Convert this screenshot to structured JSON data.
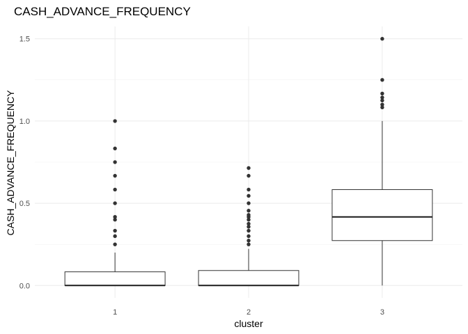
{
  "chart_data": {
    "type": "boxplot",
    "title": "CASH_ADVANCE_FREQUENCY",
    "xlabel": "cluster",
    "ylabel": "CASH_ADVANCE_FREQUENCY",
    "categories": [
      "1",
      "2",
      "3"
    ],
    "ylim": [
      -0.075,
      1.575
    ],
    "y_ticks": [
      0.0,
      0.5,
      1.0,
      1.5
    ],
    "y_tick_labels": [
      "0.0",
      "0.5",
      "1.0",
      "1.5"
    ],
    "grid": true,
    "boxes": [
      {
        "category": "1",
        "whisker_low": 0.0,
        "q1": 0.0,
        "median": 0.0,
        "q3": 0.083,
        "whisker_high": 0.2,
        "outliers": [
          0.25,
          0.3,
          0.333,
          0.4,
          0.417,
          0.5,
          0.583,
          0.667,
          0.75,
          0.833,
          1.0
        ]
      },
      {
        "category": "2",
        "whisker_low": 0.0,
        "q1": 0.0,
        "median": 0.0,
        "q3": 0.091,
        "whisker_high": 0.222,
        "outliers": [
          0.25,
          0.273,
          0.3,
          0.333,
          0.357,
          0.375,
          0.4,
          0.417,
          0.429,
          0.455,
          0.5,
          0.545,
          0.583,
          0.667,
          0.714
        ]
      },
      {
        "category": "3",
        "whisker_low": 0.0,
        "q1": 0.273,
        "median": 0.417,
        "q3": 0.583,
        "whisker_high": 1.0,
        "outliers": [
          1.083,
          1.1,
          1.125,
          1.143,
          1.167,
          1.25,
          1.5
        ]
      }
    ]
  }
}
